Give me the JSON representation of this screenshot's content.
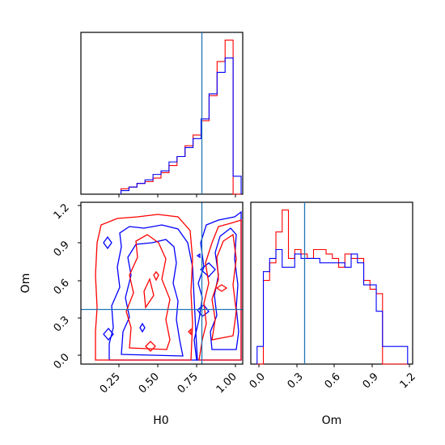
{
  "chart_data": [
    {
      "type": "histogram",
      "panel": "marginal-H0",
      "xlim": [
        0.05,
        1.06
      ],
      "bin_edges": [
        0.3,
        0.35,
        0.4,
        0.45,
        0.5,
        0.55,
        0.6,
        0.65,
        0.7,
        0.75,
        0.8,
        0.85,
        0.9,
        0.95,
        1.0,
        1.05
      ],
      "series": [
        {
          "color": "#ff0000",
          "values": [
            3,
            4,
            6,
            7,
            9,
            12,
            16,
            21,
            27,
            33,
            41,
            55,
            74,
            86,
            0
          ]
        },
        {
          "color": "#0000ff",
          "values": [
            2,
            4,
            6,
            8,
            11,
            13,
            18,
            21,
            26,
            31,
            42,
            56,
            68,
            76,
            10
          ]
        }
      ],
      "reference_line": {
        "x": 0.79,
        "color": "#1f77b4"
      }
    },
    {
      "type": "contour",
      "panel": "joint-H0-Om",
      "xlabel": "H0",
      "ylabel": "Om",
      "xlim": [
        0.05,
        1.06
      ],
      "ylim": [
        -0.05,
        1.24
      ],
      "xticks": [
        "0.25",
        "0.50",
        "0.75",
        "1.00"
      ],
      "yticks": [
        "0.0",
        "0.3",
        "0.6",
        "0.9",
        "1.2"
      ],
      "reference_lines": {
        "x": 0.79,
        "y": 0.36,
        "color": "#1f77b4"
      },
      "series": [
        {
          "color": "#0000ff",
          "levels": 2
        },
        {
          "color": "#ff0000",
          "levels": 2
        }
      ]
    },
    {
      "type": "histogram",
      "panel": "marginal-Om",
      "xlabel": "Om",
      "xlim": [
        -0.05,
        1.24
      ],
      "xticks": [
        "0.0",
        "0.3",
        "0.6",
        "0.9",
        "1.2"
      ],
      "bin_edges": [
        0.0,
        0.05,
        0.1,
        0.15,
        0.2,
        0.25,
        0.3,
        0.35,
        0.4,
        0.45,
        0.5,
        0.55,
        0.6,
        0.65,
        0.7,
        0.75,
        0.8,
        0.85,
        0.9,
        0.95,
        1.0,
        1.05,
        1.1,
        1.15,
        1.2
      ],
      "series": [
        {
          "color": "#ff0000",
          "values": [
            0,
            19,
            23,
            30,
            35,
            24,
            26,
            25,
            24,
            26,
            26,
            25,
            24,
            22,
            25,
            24,
            24,
            19,
            17,
            16,
            0,
            0,
            0,
            0
          ]
        },
        {
          "color": "#0000ff",
          "values": [
            4,
            21,
            24,
            26,
            22,
            22,
            25,
            24,
            24,
            24,
            23,
            23,
            23,
            23,
            22,
            25,
            23,
            18,
            18,
            12,
            4,
            4,
            4,
            4
          ]
        }
      ],
      "reference_line": {
        "x": 0.36,
        "color": "#1f77b4"
      }
    }
  ]
}
